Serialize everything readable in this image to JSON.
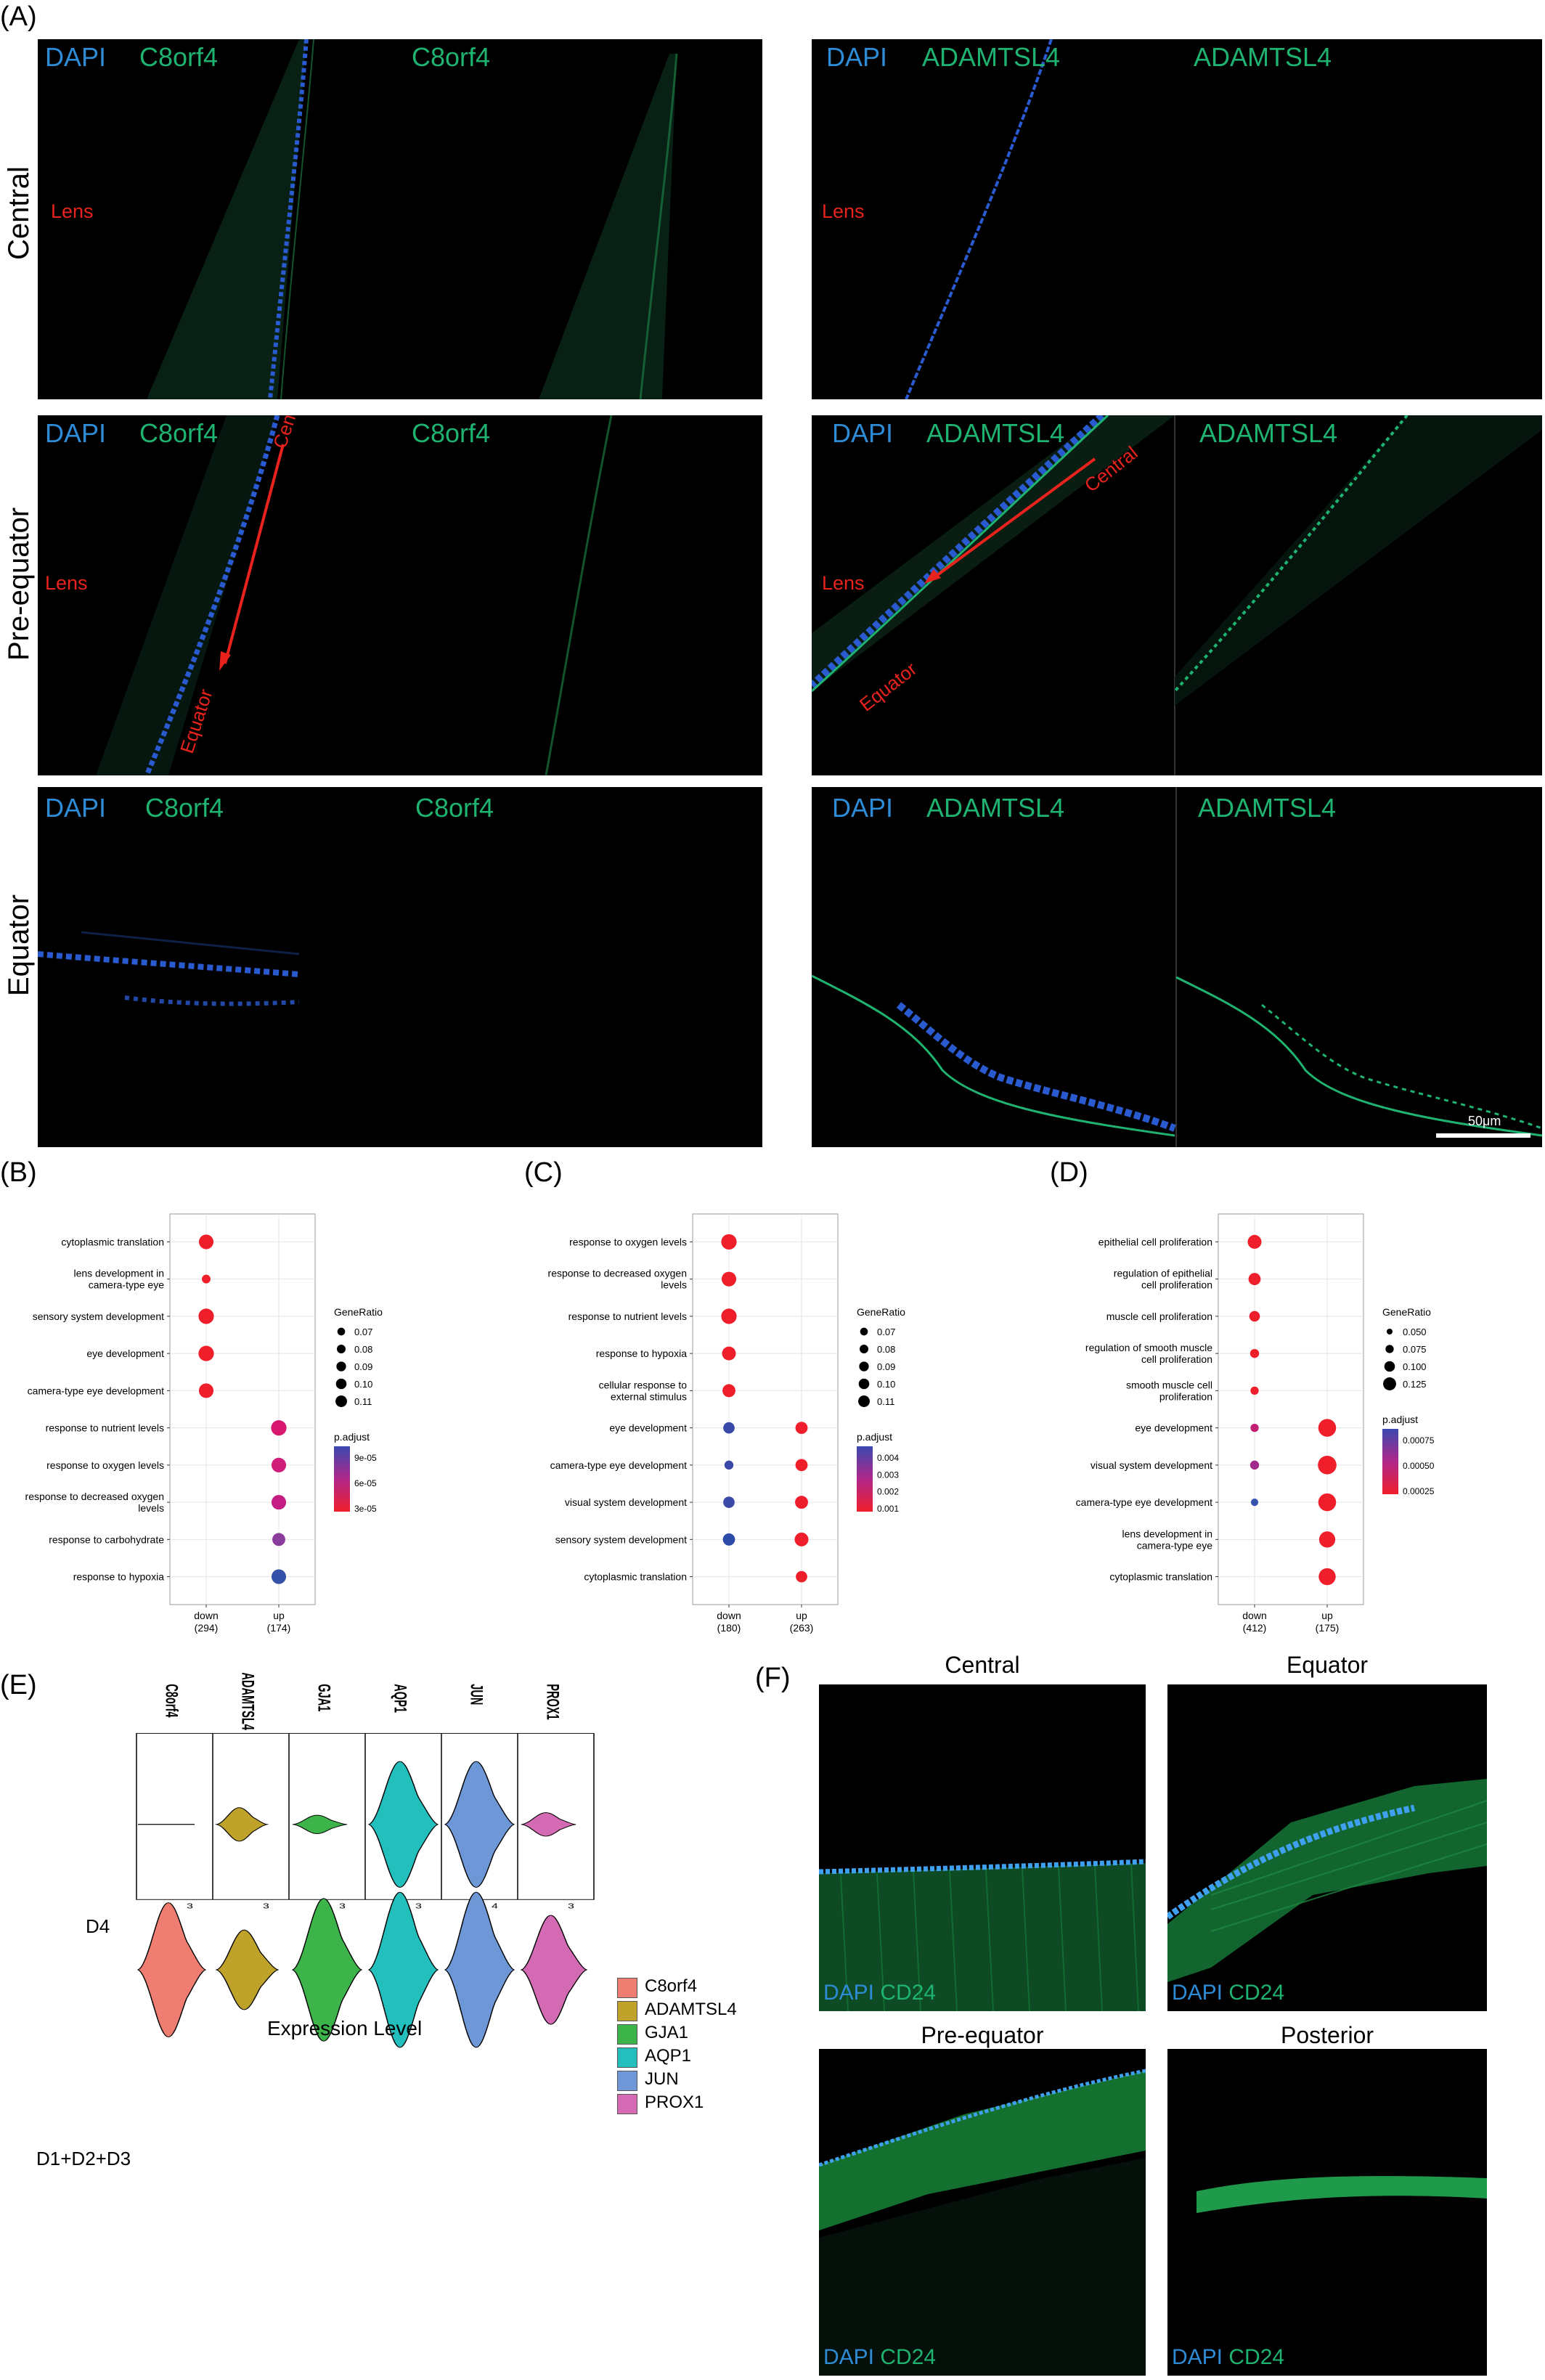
{
  "panel_labels": {
    "A": "(A)",
    "B": "(B)",
    "C": "(C)",
    "D": "(D)",
    "E": "(E)",
    "F": "(F)"
  },
  "panel_a": {
    "row_labels": [
      "Central",
      "Pre-equator",
      "Equator"
    ],
    "dapi": "DAPI",
    "left_marker": "C8orf4",
    "right_marker": "ADAMTSL4",
    "lens": "Lens",
    "arrow_central": "Central",
    "arrow_equator": "Equator",
    "scale_bar": "50μm"
  },
  "dotplots": [
    {
      "id": "B",
      "terms": [
        "cytoplasmic translation",
        "lens development in\ncamera-type eye",
        "sensory system development",
        "eye development",
        "camera-type eye development",
        "response to nutrient levels",
        "response to oxygen levels",
        "response to decreased oxygen\nlevels",
        "response to carbohydrate",
        "response to hypoxia"
      ],
      "xcats": [
        {
          "a": "down",
          "b": "(294)"
        },
        {
          "a": "up",
          "b": "(174)"
        }
      ],
      "dots": [
        [
          0,
          0,
          0.105,
          "#ee1f2b"
        ],
        [
          1,
          0,
          0.068,
          "#ee1f2b"
        ],
        [
          2,
          0,
          0.11,
          "#ee1f2b"
        ],
        [
          3,
          0,
          0.11,
          "#ee1f2b"
        ],
        [
          4,
          0,
          0.105,
          "#ee1f2b"
        ],
        [
          5,
          1,
          0.11,
          "#d8186e"
        ],
        [
          6,
          1,
          0.105,
          "#cf1d78"
        ],
        [
          7,
          1,
          0.105,
          "#c51c84"
        ],
        [
          8,
          1,
          0.095,
          "#8a3d9b"
        ],
        [
          9,
          1,
          0.105,
          "#3550a8"
        ]
      ],
      "size_title": "GeneRatio",
      "size_labels": [
        "0.07",
        "0.08",
        "0.09",
        "0.10",
        "0.11"
      ],
      "color_title": "p.adjust",
      "color_labels": [
        "9e-05",
        "6e-05",
        "3e-05"
      ]
    },
    {
      "id": "C",
      "terms": [
        "response to oxygen levels",
        "response to decreased oxygen\nlevels",
        "response to nutrient levels",
        "response to hypoxia",
        "cellular response to\nexternal stimulus",
        "eye development",
        "camera-type eye development",
        "visual system development",
        "sensory system development",
        "cytoplasmic translation"
      ],
      "xcats": [
        {
          "a": "down",
          "b": "(180)"
        },
        {
          "a": "up",
          "b": "(263)"
        }
      ],
      "dots": [
        [
          0,
          0,
          0.11,
          "#ee1f2b"
        ],
        [
          1,
          0,
          0.105,
          "#ee1f2b"
        ],
        [
          2,
          0,
          0.11,
          "#ee1f2b"
        ],
        [
          3,
          0,
          0.1,
          "#ee1f2b"
        ],
        [
          4,
          0,
          0.095,
          "#ee1f2b"
        ],
        [
          5,
          0,
          0.085,
          "#3a48a8"
        ],
        [
          6,
          0,
          0.07,
          "#3a48a8"
        ],
        [
          7,
          0,
          0.085,
          "#3a48a8"
        ],
        [
          8,
          0,
          0.09,
          "#2c4aa8"
        ],
        [
          5,
          1,
          0.09,
          "#ee1f2b"
        ],
        [
          6,
          1,
          0.09,
          "#ee1f2b"
        ],
        [
          7,
          1,
          0.095,
          "#ee1f2b"
        ],
        [
          8,
          1,
          0.1,
          "#ee1f2b"
        ],
        [
          9,
          1,
          0.085,
          "#ee1f2b"
        ]
      ],
      "size_title": "GeneRatio",
      "size_labels": [
        "0.07",
        "0.08",
        "0.09",
        "0.10",
        "0.11"
      ],
      "color_title": "p.adjust",
      "color_labels": [
        "0.004",
        "0.003",
        "0.002",
        "0.001"
      ]
    },
    {
      "id": "D",
      "terms": [
        "epithelial cell proliferation",
        "regulation of epithelial\ncell proliferation",
        "muscle cell proliferation",
        "regulation of smooth muscle\ncell proliferation",
        "smooth muscle cell\nproliferation",
        "eye development",
        "visual system development",
        "camera-type eye development",
        "lens development in\ncamera-type eye",
        "cytoplasmic translation"
      ],
      "xcats": [
        {
          "a": "down",
          "b": "(412)"
        },
        {
          "a": "up",
          "b": "(175)"
        }
      ],
      "dots": [
        [
          0,
          0,
          0.1,
          "#ee1f2b"
        ],
        [
          1,
          0,
          0.09,
          "#ee1f2b"
        ],
        [
          2,
          0,
          0.08,
          "#ee1f2b"
        ],
        [
          3,
          0,
          0.07,
          "#ee1f2b"
        ],
        [
          4,
          0,
          0.065,
          "#ee1f2b"
        ],
        [
          5,
          0,
          0.065,
          "#c21f75"
        ],
        [
          6,
          0,
          0.07,
          "#a02a8a"
        ],
        [
          7,
          0,
          0.06,
          "#3653ad"
        ],
        [
          5,
          1,
          0.125,
          "#ee1f2b"
        ],
        [
          6,
          1,
          0.13,
          "#ee1f2b"
        ],
        [
          7,
          1,
          0.125,
          "#ee1f2b"
        ],
        [
          8,
          1,
          0.115,
          "#ee1f2b"
        ],
        [
          9,
          1,
          0.12,
          "#ee1f2b"
        ]
      ],
      "size_title": "GeneRatio",
      "size_labels": [
        "0.050",
        "0.075",
        "0.100",
        "0.125"
      ],
      "color_title": "p.adjust",
      "color_labels": [
        "0.00075",
        "0.00050",
        "0.00025"
      ]
    }
  ],
  "panel_e": {
    "genes": [
      "C8orf4",
      "ADAMTSL4",
      "GJA1",
      "AQP1",
      "JUN",
      "PROX1"
    ],
    "rows": [
      "D4",
      "D1+D2+D3"
    ],
    "tick": "3",
    "ticks": [
      "3",
      "3",
      "3",
      "3",
      "4",
      "3"
    ],
    "xlabel": "Expression Level",
    "colors": [
      "#f07d72",
      "#bea22a",
      "#3db44a",
      "#23bfbd",
      "#6d97d6",
      "#d46ab3"
    ]
  },
  "panel_f": {
    "titles": [
      "Central",
      "Equator",
      "Pre-equator",
      "Posterior"
    ],
    "dapi": "DAPI",
    "marker": "CD24"
  }
}
